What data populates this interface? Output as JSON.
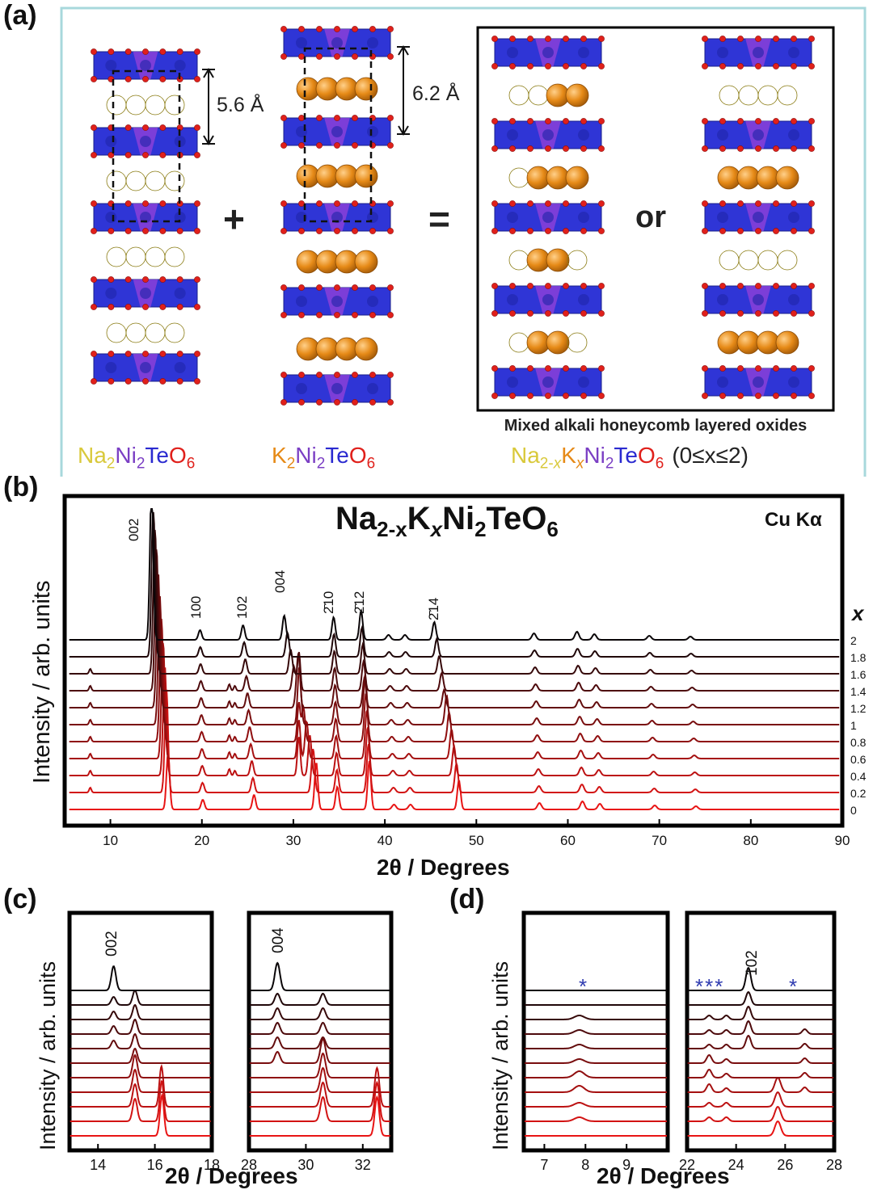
{
  "panel_labels": {
    "a": "(a)",
    "b": "(b)",
    "c": "(c)",
    "d": "(d)"
  },
  "panel_a": {
    "spacing_na": "5.6 Å",
    "spacing_k": "6.2 Å",
    "plus": "+",
    "equals": "=",
    "or": "or",
    "box_caption": "Mixed alkali honeycomb layered oxides",
    "range": "(0≤x≤2)",
    "colors": {
      "na": "#d9c93b",
      "k": "#e68a17",
      "ni": "#7b3fc4",
      "te": "#2a2ad0",
      "o": "#e0201b",
      "frame": "#a8d8dc",
      "slab": "#2f35d6",
      "slab_mid": "#8a40d8"
    },
    "formula_na": [
      [
        "Na",
        ""
      ],
      [
        "2",
        "sub"
      ],
      [
        "Ni",
        ""
      ],
      [
        "2",
        "sub"
      ],
      [
        "Te",
        ""
      ],
      [
        "O",
        ""
      ],
      [
        "6",
        "sub"
      ]
    ],
    "formula_k": [
      [
        "K",
        ""
      ],
      [
        "2",
        "sub"
      ],
      [
        "Ni",
        ""
      ],
      [
        "2",
        "sub"
      ],
      [
        "Te",
        ""
      ],
      [
        "O",
        ""
      ],
      [
        "6",
        "sub"
      ]
    ],
    "formula_mix": [
      [
        "Na",
        ""
      ],
      [
        "2-",
        "sub"
      ],
      [
        "x",
        "subi"
      ],
      [
        "K",
        ""
      ],
      [
        "x",
        "subi"
      ],
      [
        "Ni",
        ""
      ],
      [
        "2",
        "sub"
      ],
      [
        "Te",
        ""
      ],
      [
        "O",
        ""
      ],
      [
        "6",
        "sub"
      ]
    ]
  },
  "panel_b": {
    "title_parts": [
      [
        "Na",
        ""
      ],
      [
        "2-x",
        "sub"
      ],
      [
        "K",
        ""
      ],
      [
        "x",
        "subi"
      ],
      [
        "Ni",
        ""
      ],
      [
        "2",
        "sub"
      ],
      [
        "TeO",
        ""
      ],
      [
        "6",
        "sub"
      ]
    ],
    "radiation": "Cu  Kα",
    "x_param": "x",
    "xlabel": "2θ / Degrees",
    "ylabel": "Intensity / arb. units",
    "peak_labels": [
      "002",
      "100",
      "102",
      "004",
      "2̄10",
      "2̄12",
      "2̄14"
    ],
    "x_ticks": [
      "10",
      "20",
      "30",
      "40",
      "50",
      "60",
      "70",
      "80",
      "90"
    ]
  },
  "panel_c": {
    "ylabel": "Intensity / arb. units",
    "xlabel": "2θ / Degrees",
    "left_ticks": [
      "14",
      "16",
      "18"
    ],
    "right_ticks": [
      "28",
      "30",
      "32"
    ],
    "left_peak": "002",
    "right_peak": "004"
  },
  "panel_d": {
    "ylabel": "Intensity / arb. units",
    "xlabel": "2θ / Degrees",
    "left_ticks": [
      "7",
      "8",
      "9"
    ],
    "right_ticks": [
      "22",
      "24",
      "26",
      "28"
    ],
    "star_left": "*",
    "star_right_group": "***",
    "star_right_single": "*",
    "peak": "102"
  },
  "chart_data": {
    "type": "line",
    "title": "Na2-xKxNi2TeO6",
    "xlabel": "2θ / Degrees",
    "ylabel": "Intensity / arb. units",
    "xlim": [
      5,
      90
    ],
    "series_param": "x",
    "x_values": [
      "0",
      "0.2",
      "0.4",
      "0.6",
      "0.8",
      "1",
      "1.2",
      "1.4",
      "1.6",
      "1.8",
      "2"
    ],
    "peak_positions_x0": [
      {
        "hkl": "002",
        "two_theta": 16.3
      },
      {
        "hkl": "100",
        "two_theta": 20.1
      },
      {
        "hkl": "102",
        "two_theta": 25.7
      },
      {
        "hkl": "004",
        "two_theta": 32.5
      },
      {
        "hkl": "2-10",
        "two_theta": 34.8
      },
      {
        "hkl": "2-12",
        "two_theta": 38.3
      },
      {
        "hkl": "2-14",
        "two_theta": 48.1
      }
    ],
    "peak_positions_x2": [
      {
        "hkl": "002",
        "two_theta": 14.5
      },
      {
        "hkl": "100",
        "two_theta": 19.8
      },
      {
        "hkl": "102",
        "two_theta": 24.5
      },
      {
        "hkl": "004",
        "two_theta": 29.0
      },
      {
        "hkl": "2-10",
        "two_theta": 34.4
      },
      {
        "hkl": "2-12",
        "two_theta": 37.4
      },
      {
        "hkl": "2-14",
        "two_theta": 45.4
      }
    ]
  }
}
